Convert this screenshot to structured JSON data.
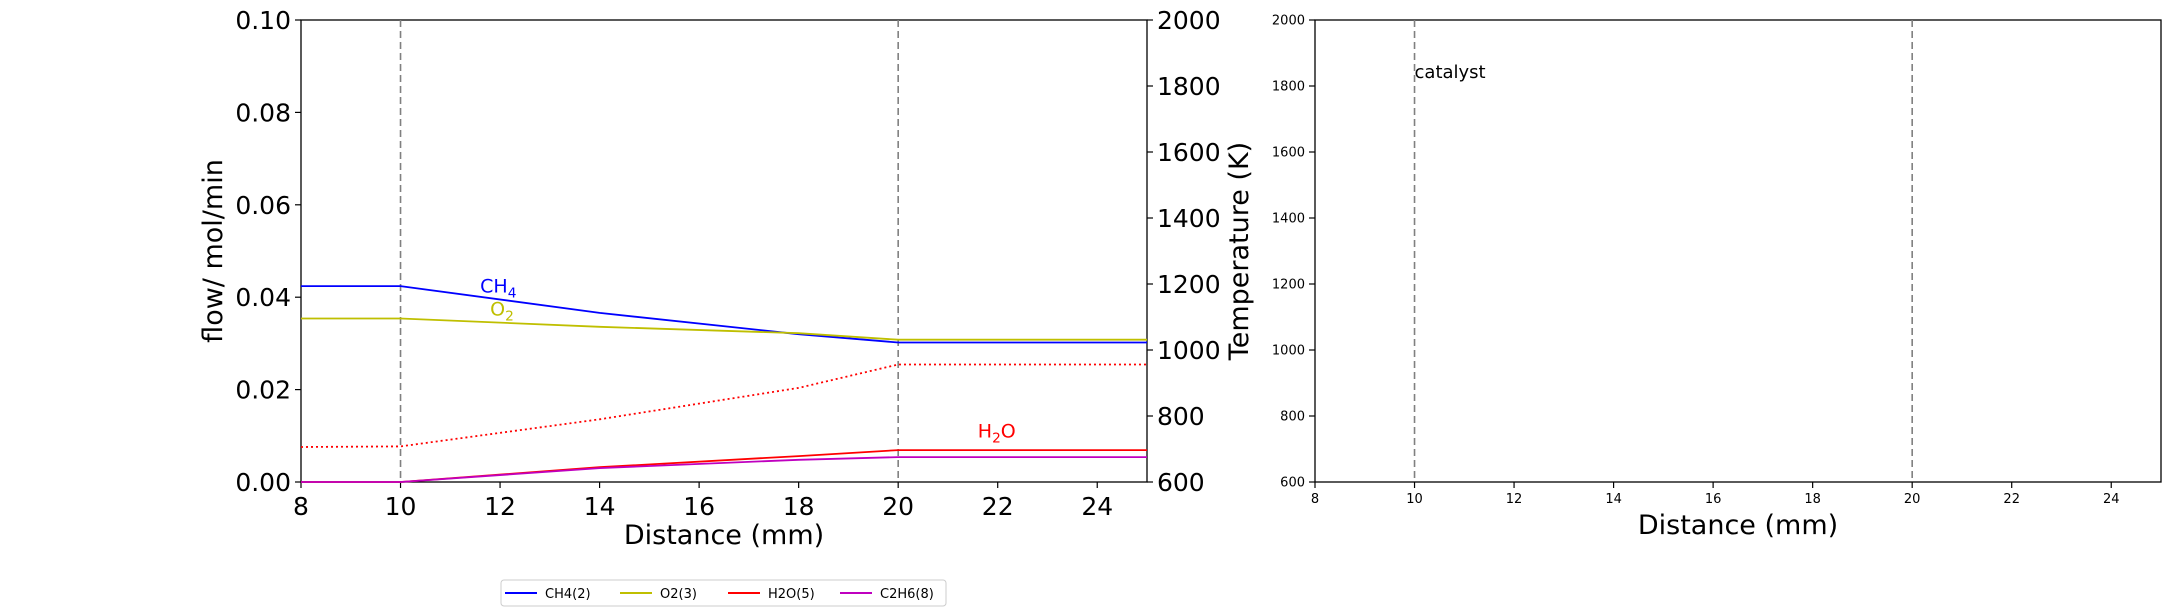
{
  "chart_data": [
    {
      "type": "line",
      "xlabel": "Distance (mm)",
      "ylabel": "flow/ mol/min",
      "y2label": "Temperature (K)",
      "xlim": [
        8,
        25
      ],
      "ylim": [
        0,
        0.1
      ],
      "y2lim": [
        600,
        2000
      ],
      "x_ticks": [
        "8",
        "10",
        "12",
        "14",
        "16",
        "18",
        "20",
        "22",
        "24"
      ],
      "y_ticks": [
        "0.00",
        "0.02",
        "0.04",
        "0.06",
        "0.08",
        "0.10"
      ],
      "y2_ticks": [
        "600",
        "800",
        "1000",
        "1200",
        "1400",
        "1600",
        "1800",
        "2000"
      ],
      "vlines": [
        10,
        20
      ],
      "series": [
        {
          "name": "CH4(2)",
          "label": "CH4",
          "axis": "left",
          "color": "#0000ff",
          "x": [
            8,
            10,
            14,
            18,
            20,
            25
          ],
          "y": [
            0.0424,
            0.0424,
            0.0366,
            0.032,
            0.0302,
            0.0302
          ]
        },
        {
          "name": "O2(3)",
          "label": "O2",
          "axis": "left",
          "color": "#bfbf00",
          "x": [
            8,
            10,
            14,
            18,
            20,
            25
          ],
          "y": [
            0.0354,
            0.0354,
            0.0336,
            0.0322,
            0.0308,
            0.0308
          ]
        },
        {
          "name": "H2O(5)",
          "label": "H2O",
          "axis": "left",
          "color": "#ff0000",
          "x": [
            8,
            10,
            14,
            18,
            20,
            25
          ],
          "y": [
            0.0,
            0.0,
            0.0032,
            0.0056,
            0.0069,
            0.0069
          ]
        },
        {
          "name": "C2H6(8)",
          "axis": "left",
          "color": "#bf00bf",
          "x": [
            8,
            10,
            14,
            18,
            20,
            25
          ],
          "y": [
            0.0,
            0.0,
            0.003,
            0.0048,
            0.0054,
            0.0054
          ]
        },
        {
          "axis": "right",
          "color": "#ff0000",
          "style": "dotted",
          "x": [
            8,
            10,
            14,
            18,
            20,
            25
          ],
          "y": [
            706,
            708,
            790,
            885,
            956,
            956
          ]
        }
      ],
      "annotations": [
        {
          "base": "CH",
          "sub": "4",
          "x": 11.6,
          "y": 0.041,
          "color": "#0000ff"
        },
        {
          "base": "O",
          "sub": "2",
          "x": 11.8,
          "y": 0.036,
          "color": "#bfbf00"
        },
        {
          "base": "H",
          "sub": "2",
          "tail": "O",
          "x": 21.6,
          "y": 0.0096,
          "color": "#ff0000"
        }
      ],
      "legend": {
        "position": "bottom-center",
        "entries": [
          "CH4(2)",
          "O2(3)",
          "H2O(5)",
          "C2H6(8)"
        ]
      }
    },
    {
      "type": "line",
      "xlabel": "Distance (mm)",
      "xlim": [
        8,
        25
      ],
      "ylim": [
        600,
        2000
      ],
      "x_ticks": [
        "8",
        "10",
        "12",
        "14",
        "16",
        "18",
        "20",
        "22",
        "24"
      ],
      "y_ticks": [
        "600",
        "800",
        "1000",
        "1200",
        "1400",
        "1600",
        "1800",
        "2000"
      ],
      "vlines": [
        10,
        20
      ],
      "annotations": [
        {
          "text": "catalyst",
          "x": 10,
          "y": 1825
        }
      ],
      "series": []
    }
  ]
}
